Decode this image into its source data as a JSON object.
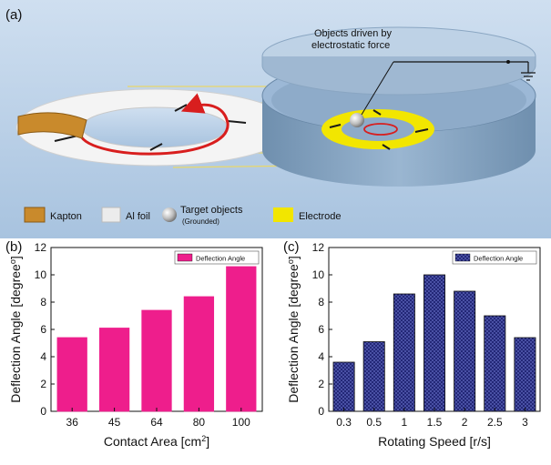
{
  "panel_a": {
    "label": "(a)",
    "caption_line1": "Objects driven by",
    "caption_line2": "electrostatic force",
    "legend": [
      {
        "label": "Kapton",
        "color": "#c98a2c"
      },
      {
        "label": "Al foil",
        "color": "#ececec"
      },
      {
        "label": "Target objects",
        "sublabel": "(Grounded)",
        "color": "#bdbdbd"
      },
      {
        "label": "Electrode",
        "color": "#f2e600"
      }
    ],
    "colors": {
      "background": "#b9d0e6",
      "electrode": "#f2e600",
      "kapton": "#c98a2c",
      "arrow": "#d81e1e"
    }
  },
  "chart_data": [
    {
      "panel_label": "(b)",
      "type": "bar",
      "categories": [
        "36",
        "45",
        "64",
        "80",
        "100"
      ],
      "series": [
        {
          "name": "Deflection Angle",
          "values": [
            5.4,
            6.1,
            7.4,
            8.4,
            10.6
          ],
          "color": "#ee1e8c",
          "pattern": "solid"
        }
      ],
      "xlabel": "Contact Area [cm",
      "xlabel_sup": "2",
      "xlabel_end": "]",
      "ylabel": "Deflection Angle [degree",
      "ylabel_sup": "o",
      "ylabel_end": "]",
      "ylim": [
        0,
        12
      ],
      "yticks": [
        "0",
        "2",
        "4",
        "6",
        "8",
        "10",
        "12"
      ],
      "legend_position": "top-right",
      "grid": false
    },
    {
      "panel_label": "(c)",
      "type": "bar",
      "categories": [
        "0.3",
        "0.5",
        "1",
        "1.5",
        "2",
        "2.5",
        "3"
      ],
      "series": [
        {
          "name": "Deflection Angle",
          "values": [
            3.6,
            5.1,
            8.6,
            10.0,
            8.8,
            7.0,
            5.4
          ],
          "color": "#1b1f6e",
          "pattern": "crosshatch"
        }
      ],
      "xlabel": "Rotating Speed [r/s]",
      "ylabel": "Deflection Angle [degree",
      "ylabel_sup": "o",
      "ylabel_end": "]",
      "ylim": [
        0,
        12
      ],
      "yticks": [
        "0",
        "2",
        "4",
        "6",
        "8",
        "10",
        "12"
      ],
      "legend_position": "top-right",
      "grid": false
    }
  ]
}
